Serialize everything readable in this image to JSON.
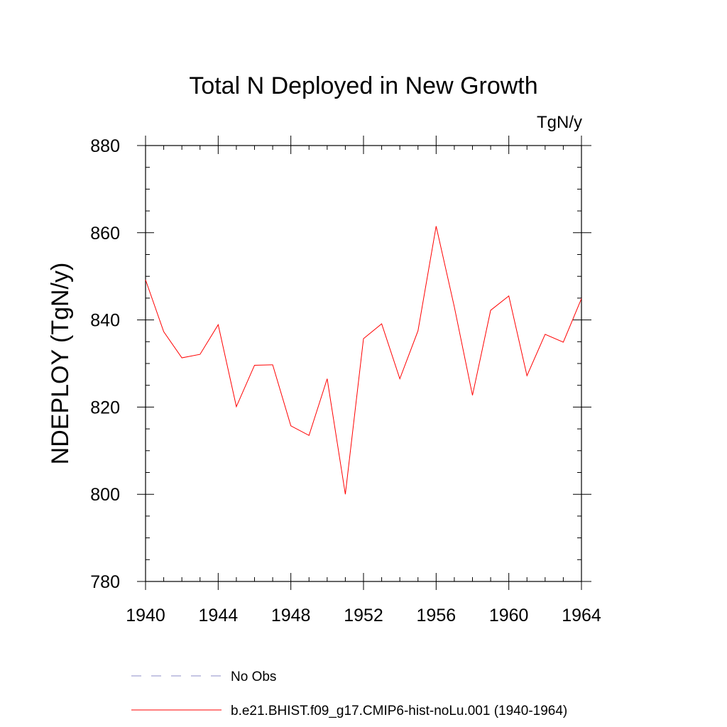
{
  "chart_data": {
    "type": "line",
    "title": "Total N Deployed in New Growth",
    "units_label": "TgN/y",
    "xlabel": "",
    "ylabel": "NDEPLOY  (TgN/y)",
    "xlim": [
      1940,
      1964
    ],
    "ylim": [
      780,
      880
    ],
    "x_ticks": [
      1940,
      1944,
      1948,
      1952,
      1956,
      1960,
      1964
    ],
    "y_ticks": [
      780,
      800,
      820,
      840,
      860,
      880
    ],
    "x_minor_step": 1,
    "y_minor_step": 5,
    "grid": false,
    "legend_position": "bottom",
    "series": [
      {
        "name": "b.e21.BHIST.f09_g17.CMIP6-hist-noLu.001 (1940-1964)",
        "color": "#ff0000",
        "style": "solid",
        "x": [
          1940,
          1941,
          1942,
          1943,
          1944,
          1945,
          1946,
          1947,
          1948,
          1949,
          1950,
          1951,
          1952,
          1953,
          1954,
          1955,
          1956,
          1957,
          1958,
          1959,
          1960,
          1961,
          1962,
          1963,
          1964
        ],
        "y": [
          849.2,
          837.3,
          831.3,
          832.1,
          838.9,
          820.1,
          829.6,
          829.7,
          815.7,
          813.5,
          826.5,
          800.0,
          835.7,
          839.1,
          826.5,
          837.5,
          861.5,
          843.0,
          822.7,
          842.2,
          845.5,
          827.2,
          836.7,
          834.9,
          844.9
        ]
      }
    ],
    "legend": [
      {
        "name": "No Obs",
        "color": "#8c8cc8",
        "style": "dashed"
      },
      {
        "name": "b.e21.BHIST.f09_g17.CMIP6-hist-noLu.001 (1940-1964)",
        "color": "#ff0000",
        "style": "solid"
      }
    ]
  }
}
